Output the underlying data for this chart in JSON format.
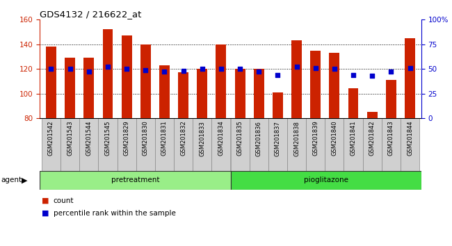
{
  "title": "GDS4132 / 216622_at",
  "samples": [
    "GSM201542",
    "GSM201543",
    "GSM201544",
    "GSM201545",
    "GSM201829",
    "GSM201830",
    "GSM201831",
    "GSM201832",
    "GSM201833",
    "GSM201834",
    "GSM201835",
    "GSM201836",
    "GSM201837",
    "GSM201838",
    "GSM201839",
    "GSM201840",
    "GSM201841",
    "GSM201842",
    "GSM201843",
    "GSM201844"
  ],
  "counts": [
    138,
    129,
    129,
    152,
    147,
    140,
    123,
    117,
    120,
    140,
    120,
    120,
    101,
    143,
    135,
    133,
    104,
    85,
    111,
    145
  ],
  "percentiles": [
    50,
    50,
    47,
    52,
    50,
    49,
    47,
    48,
    50,
    50,
    50,
    47,
    44,
    52,
    51,
    50,
    44,
    43,
    47,
    51
  ],
  "pretreatment_count": 10,
  "pioglitazone_count": 10,
  "ylim_left": [
    80,
    160
  ],
  "ylim_right": [
    0,
    100
  ],
  "yticks_left": [
    80,
    100,
    120,
    140,
    160
  ],
  "yticks_right": [
    0,
    25,
    50,
    75,
    100
  ],
  "ytick_labels_right": [
    "0",
    "25",
    "50",
    "75",
    "100%"
  ],
  "bar_color": "#cc2200",
  "dot_color": "#0000cc",
  "pretreat_color": "#99ee88",
  "pioglit_color": "#44dd44",
  "agent_label": "agent",
  "pretreat_label": "pretreatment",
  "pioglit_label": "pioglitazone",
  "legend_count_label": "count",
  "legend_pct_label": "percentile rank within the sample"
}
